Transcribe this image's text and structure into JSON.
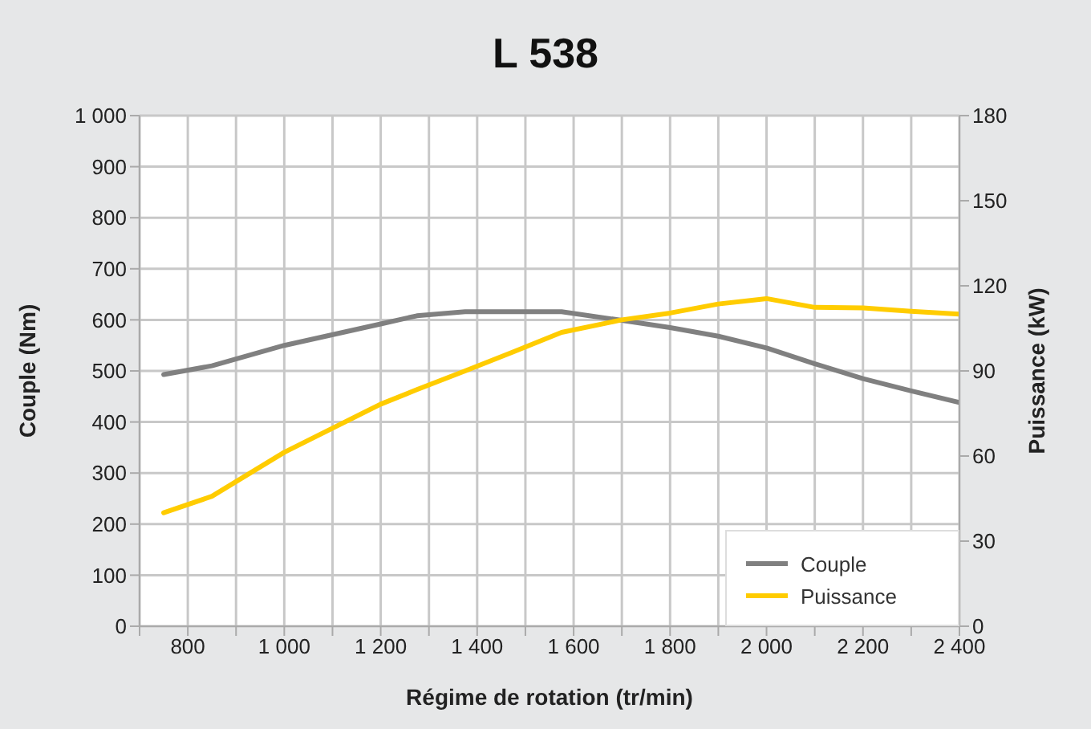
{
  "chart_data": {
    "type": "line",
    "title": "L 538",
    "xlabel": "Régime de rotation (tr/min)",
    "ylabel": "Couple (Nm)",
    "y2label": "Puissance (kW)",
    "x": [
      750,
      850,
      1000,
      1200,
      1275,
      1375,
      1475,
      1575,
      1700,
      1800,
      1900,
      2000,
      2100,
      2200,
      2300,
      2400
    ],
    "series": [
      {
        "name": "Couple",
        "color": "#808080",
        "values": [
          493,
          510,
          550,
          592,
          608,
          616,
          616,
          616,
          599,
          585,
          568,
          545,
          514,
          485,
          461,
          438
        ]
      },
      {
        "name": "Puissance",
        "color": "#ffcc00",
        "axis": "y2",
        "values": [
          40,
          45.8,
          61.3,
          78.3,
          83.4,
          90,
          96.7,
          103.6,
          108,
          110.4,
          113.6,
          115.5,
          112.4,
          112.2,
          111,
          110
        ]
      }
    ],
    "xlim": [
      700,
      2400
    ],
    "xticks": [
      {
        "value": 700,
        "label": null
      },
      800,
      {
        "value": 900,
        "label": null
      },
      {
        "value": 1000,
        "label": "1 000"
      },
      {
        "value": 1100,
        "label": null
      },
      {
        "value": 1200,
        "label": "1 200"
      },
      {
        "value": 1300,
        "label": null
      },
      {
        "value": 1400,
        "label": "1 400"
      },
      {
        "value": 1500,
        "label": null
      },
      {
        "value": 1600,
        "label": "1 600"
      },
      {
        "value": 1700,
        "label": null
      },
      {
        "value": 1800,
        "label": "1 800"
      },
      {
        "value": 1900,
        "label": null
      },
      {
        "value": 2000,
        "label": "2 000"
      },
      {
        "value": 2100,
        "label": null
      },
      {
        "value": 2200,
        "label": "2 200"
      },
      {
        "value": 2300,
        "label": null
      },
      {
        "value": 2400,
        "label": "2 400"
      }
    ],
    "ylim": [
      0,
      1000
    ],
    "yticks": [
      0,
      100,
      200,
      300,
      400,
      500,
      600,
      700,
      800,
      900,
      {
        "value": 1000,
        "label": "1 000"
      }
    ],
    "y2lim": [
      0,
      180
    ],
    "y2ticks": [
      0,
      30,
      60,
      90,
      120,
      150,
      180
    ],
    "grid": true,
    "legend": "bottom right",
    "marker": "none",
    "line_style": "solid"
  }
}
